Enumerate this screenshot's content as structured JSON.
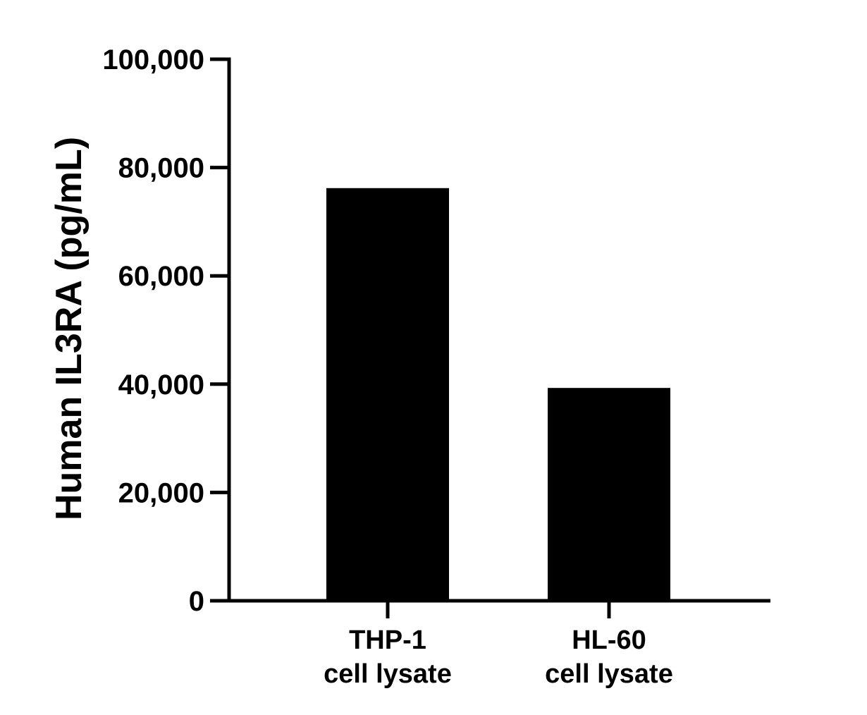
{
  "chart_data": {
    "type": "bar",
    "title": "",
    "xlabel": "",
    "ylabel": "Human IL3RA (pg/mL)",
    "categories": [
      [
        "THP-1",
        "cell lysate"
      ],
      [
        "HL-60",
        "cell lysate"
      ]
    ],
    "values": [
      76200,
      39300
    ],
    "yticks": [
      0,
      20000,
      40000,
      60000,
      80000,
      100000
    ],
    "ytick_labels": [
      "0",
      "20,000",
      "40,000",
      "60,000",
      "80,000",
      "100,000"
    ],
    "ylim": [
      0,
      100000
    ],
    "grid": false,
    "legend": "none",
    "bar_color": "#000000",
    "axis_color": "#000000"
  }
}
